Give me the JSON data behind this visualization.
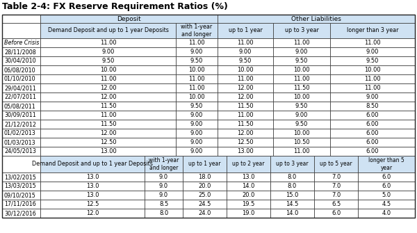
{
  "title": "Table 2-4: FX Reserve Requirement Ratios (%)",
  "header_bg": "#cfe2f3",
  "white_bg": "#ffffff",
  "border_color": "#666666",
  "section1_rows": [
    [
      "Before Crisis",
      "11.00",
      "11.00",
      "11.00",
      "11.00",
      "11.00"
    ],
    [
      "28/11/2008",
      "9.00",
      "9.00",
      "9.00",
      "9.00",
      "9.00"
    ],
    [
      "30/04/2010",
      "9.50",
      "9.50",
      "9.50",
      "9.50",
      "9.50"
    ],
    [
      "06/08/2010",
      "10.00",
      "10.00",
      "10.00",
      "10.00",
      "10.00"
    ],
    [
      "01/10/2010",
      "11.00",
      "11.00",
      "11.00",
      "11.00",
      "11.00"
    ],
    [
      "29/04/2011",
      "12.00",
      "11.00",
      "12.00",
      "11.50",
      "11.00"
    ],
    [
      "22/07/2011",
      "12.00",
      "10.00",
      "12.00",
      "10.00",
      "9.00"
    ],
    [
      "05/08/2011",
      "11.50",
      "9.50",
      "11.50",
      "9.50",
      "8.50"
    ],
    [
      "30/09/2011",
      "11.00",
      "9.00",
      "11.00",
      "9.00",
      "6.00"
    ],
    [
      "21/12/2012",
      "11.50",
      "9.00",
      "11.50",
      "9.50",
      "6.00"
    ],
    [
      "01/02/2013",
      "12.00",
      "9.00",
      "12.00",
      "10.00",
      "6.00"
    ],
    [
      "01/03/2013",
      "12.50",
      "9.00",
      "12.50",
      "10.50",
      "6.00"
    ],
    [
      "24/05/2013",
      "13.00",
      "9.00",
      "13.00",
      "11.00",
      "6.00"
    ]
  ],
  "section2_rows": [
    [
      "13/02/2015",
      "13.0",
      "9.0",
      "18.0",
      "13.0",
      "8.0",
      "7.0",
      "6.0"
    ],
    [
      "13/03/2015",
      "13.0",
      "9.0",
      "20.0",
      "14.0",
      "8.0",
      "7.0",
      "6.0"
    ],
    [
      "09/10/2015",
      "13.0",
      "9.0",
      "25.0",
      "20.0",
      "15.0",
      "7.0",
      "5.0"
    ],
    [
      "17/11/2016",
      "12.5",
      "8.5",
      "24.5",
      "19.5",
      "14.5",
      "6.5",
      "4.5"
    ],
    [
      "30/12/2016",
      "12.0",
      "8.0",
      "24.0",
      "19.0",
      "14.0",
      "6.0",
      "4.0"
    ]
  ]
}
